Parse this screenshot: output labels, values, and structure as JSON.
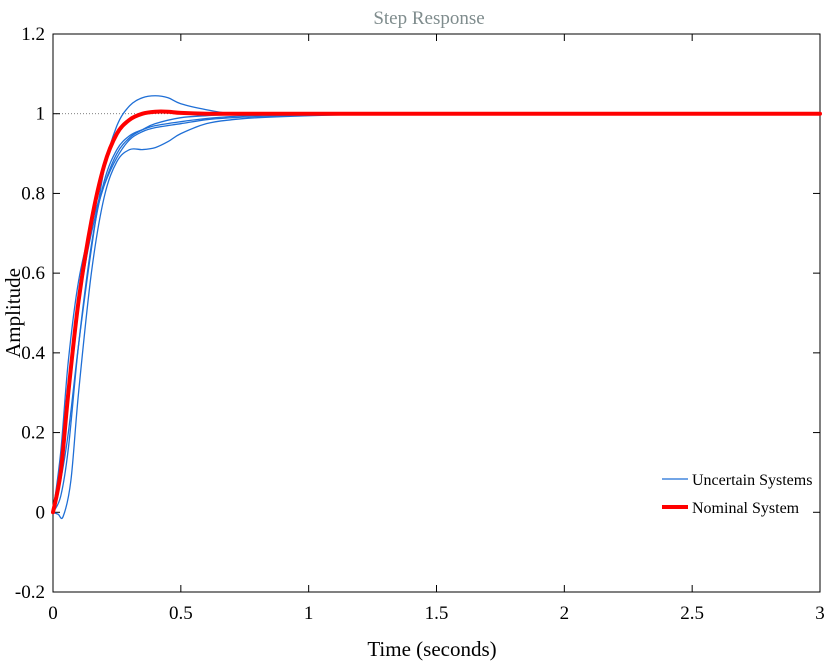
{
  "chart_data": {
    "type": "line",
    "title": "Step Response",
    "xlabel": "Time (seconds)",
    "ylabel": "Amplitude",
    "xlim": [
      0,
      3
    ],
    "ylim": [
      -0.2,
      1.2
    ],
    "xticks": [
      0,
      0.5,
      1,
      1.5,
      2,
      2.5,
      3
    ],
    "xtick_labels": [
      "0",
      "0.5",
      "1",
      "1.5",
      "2",
      "2.5",
      "3"
    ],
    "yticks": [
      -0.2,
      0,
      0.2,
      0.4,
      0.6,
      0.8,
      1,
      1.2
    ],
    "ytick_labels": [
      "-0.2",
      "0",
      "0.2",
      "0.4",
      "0.6",
      "0.8",
      "1",
      "1.2"
    ],
    "grid": false,
    "legend": {
      "position": "bottom-right",
      "entries": [
        "Uncertain Systems",
        "Nominal System"
      ]
    },
    "reference_line": {
      "y": 1,
      "style": "dotted"
    },
    "series": [
      {
        "name": "Uncertain Systems",
        "color": "#1f6fd6",
        "width": 1.3,
        "x": [
          0,
          0.03,
          0.06,
          0.1,
          0.15,
          0.2,
          0.25,
          0.3,
          0.35,
          0.4,
          0.45,
          0.5,
          0.6,
          0.7,
          0.8,
          1.0,
          1.2,
          1.5,
          2.0,
          3.0
        ],
        "y": [
          0,
          0.08,
          0.2,
          0.42,
          0.66,
          0.86,
          0.97,
          1.02,
          1.04,
          1.045,
          1.04,
          1.025,
          1.01,
          1.0,
          1.0,
          1.0,
          1.0,
          1.0,
          1.0,
          1.0
        ]
      },
      {
        "name": "Uncertain Systems",
        "color": "#1f6fd6",
        "width": 1.3,
        "x": [
          0,
          0.02,
          0.04,
          0.07,
          0.1,
          0.15,
          0.2,
          0.25,
          0.3,
          0.35,
          0.4,
          0.45,
          0.5,
          0.6,
          0.7,
          0.8,
          1.0,
          1.2,
          1.5,
          2.0,
          3.0
        ],
        "y": [
          0,
          -0.005,
          -0.01,
          0.08,
          0.3,
          0.6,
          0.79,
          0.88,
          0.91,
          0.91,
          0.915,
          0.93,
          0.95,
          0.975,
          0.985,
          0.99,
          0.995,
          0.998,
          1.0,
          1.0,
          1.0
        ]
      },
      {
        "name": "Uncertain Systems",
        "color": "#1f6fd6",
        "width": 1.3,
        "x": [
          0,
          0.03,
          0.06,
          0.1,
          0.15,
          0.2,
          0.25,
          0.3,
          0.35,
          0.4,
          0.5,
          0.6,
          0.7,
          0.8,
          1.0,
          1.2,
          1.5,
          2.0,
          3.0
        ],
        "y": [
          0,
          0.15,
          0.38,
          0.58,
          0.72,
          0.82,
          0.89,
          0.935,
          0.955,
          0.965,
          0.975,
          0.985,
          0.99,
          0.993,
          0.997,
          0.999,
          1.0,
          1.0,
          1.0
        ]
      },
      {
        "name": "Uncertain Systems",
        "color": "#1f6fd6",
        "width": 1.3,
        "x": [
          0,
          0.03,
          0.06,
          0.1,
          0.15,
          0.2,
          0.25,
          0.3,
          0.35,
          0.4,
          0.5,
          0.6,
          0.7,
          0.8,
          1.0,
          1.2,
          1.5,
          2.0,
          3.0
        ],
        "y": [
          0,
          0.1,
          0.3,
          0.52,
          0.7,
          0.82,
          0.9,
          0.94,
          0.96,
          0.975,
          0.99,
          0.995,
          0.998,
          1.0,
          1.0,
          1.0,
          1.0,
          1.0,
          1.0
        ]
      },
      {
        "name": "Uncertain Systems",
        "color": "#1f6fd6",
        "width": 1.3,
        "x": [
          0,
          0.03,
          0.06,
          0.1,
          0.15,
          0.2,
          0.25,
          0.3,
          0.35,
          0.4,
          0.5,
          0.6,
          0.7,
          0.8,
          1.0,
          1.2,
          1.5,
          2.0,
          3.0
        ],
        "y": [
          0,
          0.04,
          0.16,
          0.42,
          0.67,
          0.83,
          0.91,
          0.945,
          0.96,
          0.97,
          0.98,
          0.988,
          0.993,
          0.996,
          0.999,
          1.0,
          1.0,
          1.0,
          1.0
        ]
      },
      {
        "name": "Nominal System",
        "color": "#ff0000",
        "width": 4,
        "x": [
          0,
          0.03,
          0.06,
          0.1,
          0.15,
          0.2,
          0.25,
          0.3,
          0.35,
          0.4,
          0.45,
          0.5,
          0.6,
          0.8,
          1.0,
          1.5,
          2.0,
          3.0
        ],
        "y": [
          0,
          0.1,
          0.3,
          0.53,
          0.73,
          0.87,
          0.95,
          0.985,
          1.0,
          1.005,
          1.005,
          1.002,
          1.0,
          1.0,
          1.0,
          1.0,
          1.0,
          1.0
        ]
      }
    ]
  }
}
